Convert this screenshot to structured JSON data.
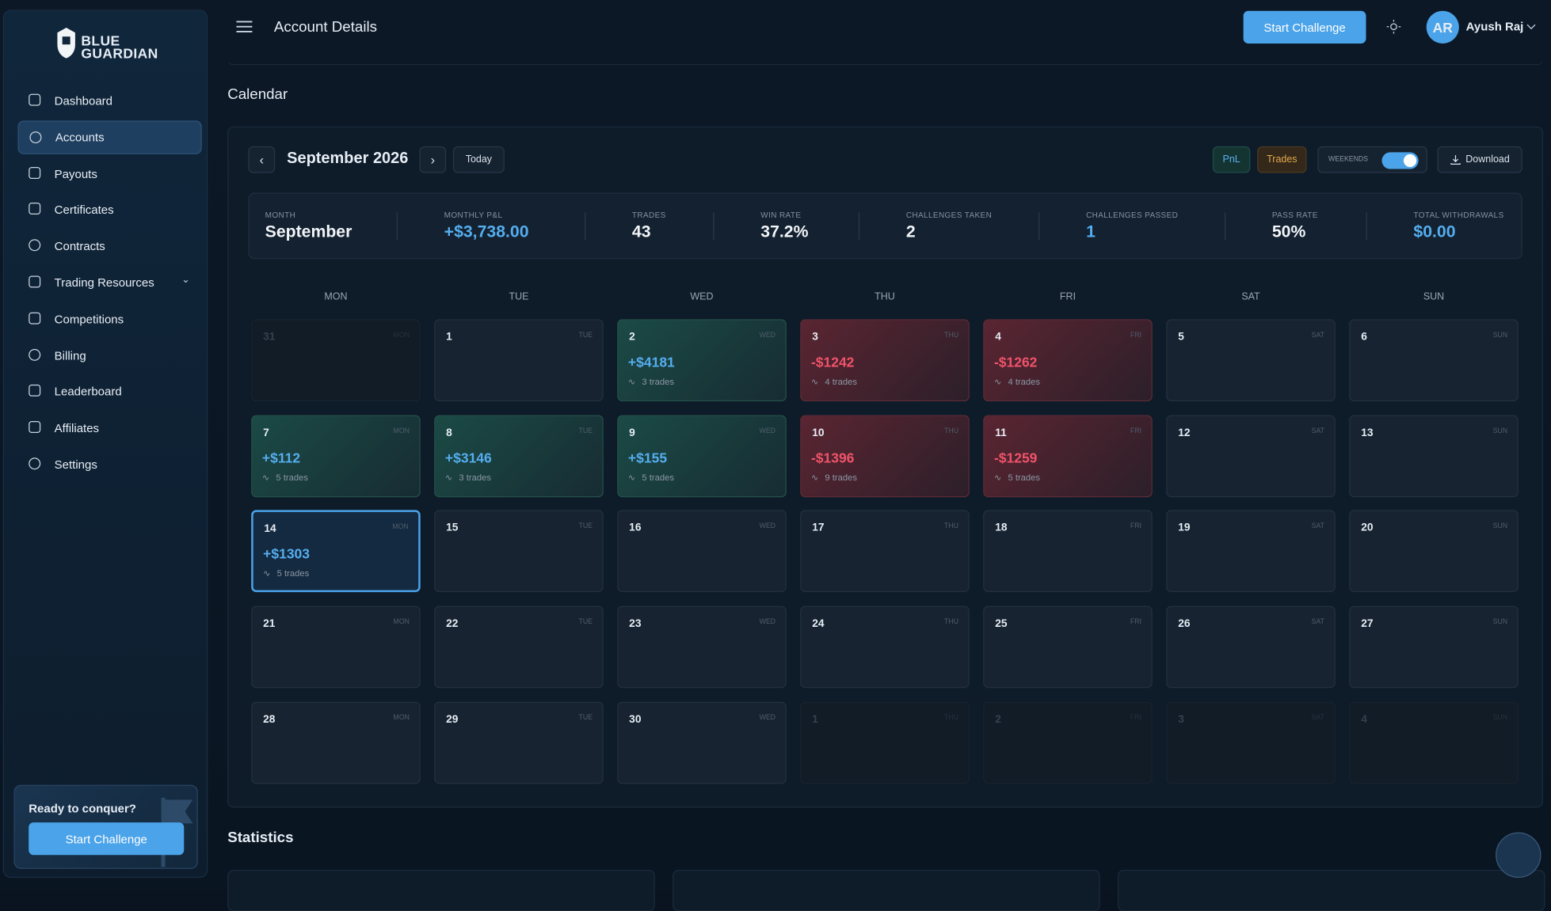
{
  "brand": {
    "line1": "BLUE",
    "line2": "GUARDIAN"
  },
  "nav": [
    "Dashboard",
    "Accounts",
    "Payouts",
    "Certificates",
    "Contracts",
    "Trading Resources",
    "Competitions",
    "Billing",
    "Leaderboard",
    "Affiliates",
    "Settings"
  ],
  "active_nav": 1,
  "promo": {
    "text": "Ready to conquer?",
    "button": "Start Challenge"
  },
  "header": {
    "title": "Account Details",
    "button": "Start Challenge",
    "avatar": "AR",
    "user": "Ayush Raj"
  },
  "calendar": {
    "heading": "Calendar",
    "month": "September 2026",
    "today": "Today",
    "pnl": "PnL",
    "trades": "Trades",
    "weekends": "WEEKENDS",
    "download": "Download",
    "stats": [
      {
        "label": "MONTH",
        "value": "September"
      },
      {
        "label": "MONTHLY P&L",
        "value": "+$3,738.00"
      },
      {
        "label": "TRADES",
        "value": "43"
      },
      {
        "label": "WIN RATE",
        "value": "37.2%"
      },
      {
        "label": "CHALLENGES TAKEN",
        "value": "2"
      },
      {
        "label": "CHALLENGES PASSED",
        "value": "1"
      },
      {
        "label": "PASS RATE",
        "value": "50%"
      },
      {
        "label": "TOTAL WITHDRAWALS",
        "value": "$0.00"
      }
    ],
    "weekdays": [
      "MON",
      "TUE",
      "WED",
      "THU",
      "FRI",
      "SAT",
      "SUN"
    ],
    "selected_day": 14,
    "cells": [
      {
        "day": 31
      },
      {
        "day": 1
      },
      {
        "day": 2,
        "pnl": "+$4181",
        "trades": "3 trades"
      },
      {
        "day": 3,
        "pnl": "-$1242",
        "trades": "4 trades"
      },
      {
        "day": 4,
        "pnl": "-$1262",
        "trades": "4 trades"
      },
      {
        "day": 5
      },
      {
        "day": 6
      },
      {
        "day": 7,
        "pnl": "+$112",
        "trades": "5 trades"
      },
      {
        "day": 8,
        "pnl": "+$3146",
        "trades": "3 trades"
      },
      {
        "day": 9,
        "pnl": "+$155",
        "trades": "5 trades"
      },
      {
        "day": 10,
        "pnl": "-$1396",
        "trades": "9 trades"
      },
      {
        "day": 11,
        "pnl": "-$1259",
        "trades": "5 trades"
      },
      {
        "day": 12
      },
      {
        "day": 13
      },
      {
        "day": 14,
        "pnl": "+$1303",
        "trades": "5 trades"
      },
      {
        "day": 15
      },
      {
        "day": 16
      },
      {
        "day": 17
      },
      {
        "day": 18
      },
      {
        "day": 19
      },
      {
        "day": 20
      },
      {
        "day": 21
      },
      {
        "day": 22
      },
      {
        "day": 23
      },
      {
        "day": 24
      },
      {
        "day": 25
      },
      {
        "day": 26
      },
      {
        "day": 27
      },
      {
        "day": 28
      },
      {
        "day": 29
      },
      {
        "day": 30
      },
      {
        "day": 1
      },
      {
        "day": 2
      },
      {
        "day": 3
      },
      {
        "day": 4
      }
    ]
  },
  "statistics": {
    "heading": "Statistics"
  }
}
